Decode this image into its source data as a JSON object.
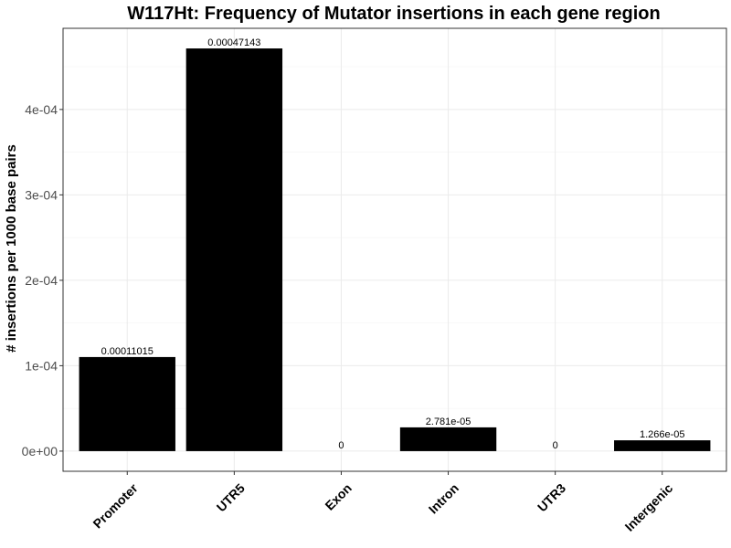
{
  "chart_data": {
    "type": "bar",
    "title": "W117Ht: Frequency of Mutator insertions in each gene region",
    "xlabel": "",
    "ylabel": "# insertions per 1000 base pairs",
    "categories": [
      "Promoter",
      "UTR5",
      "Exon",
      "Intron",
      "UTR3",
      "Intergenic"
    ],
    "values": [
      0.00011015,
      0.00047143,
      0,
      2.781e-05,
      0,
      1.266e-05
    ],
    "data_labels": [
      "0.00011015",
      "0.00047143",
      "0",
      "2.781e-05",
      "0",
      "1.266e-05"
    ],
    "yticks": [
      0,
      0.0001,
      0.0002,
      0.0003,
      0.0004
    ],
    "ytick_labels": [
      "0e+00",
      "1e-04",
      "2e-04",
      "3e-04",
      "4e-04"
    ],
    "ylim": [
      -2.36e-05,
      0.000495
    ],
    "grid": true,
    "colors": {
      "bar": "#000000",
      "grid_major": "#ebebeb",
      "grid_minor": "#f5f5f5",
      "panel_border": "#333333",
      "tick_text": "#4d4d4d"
    }
  }
}
